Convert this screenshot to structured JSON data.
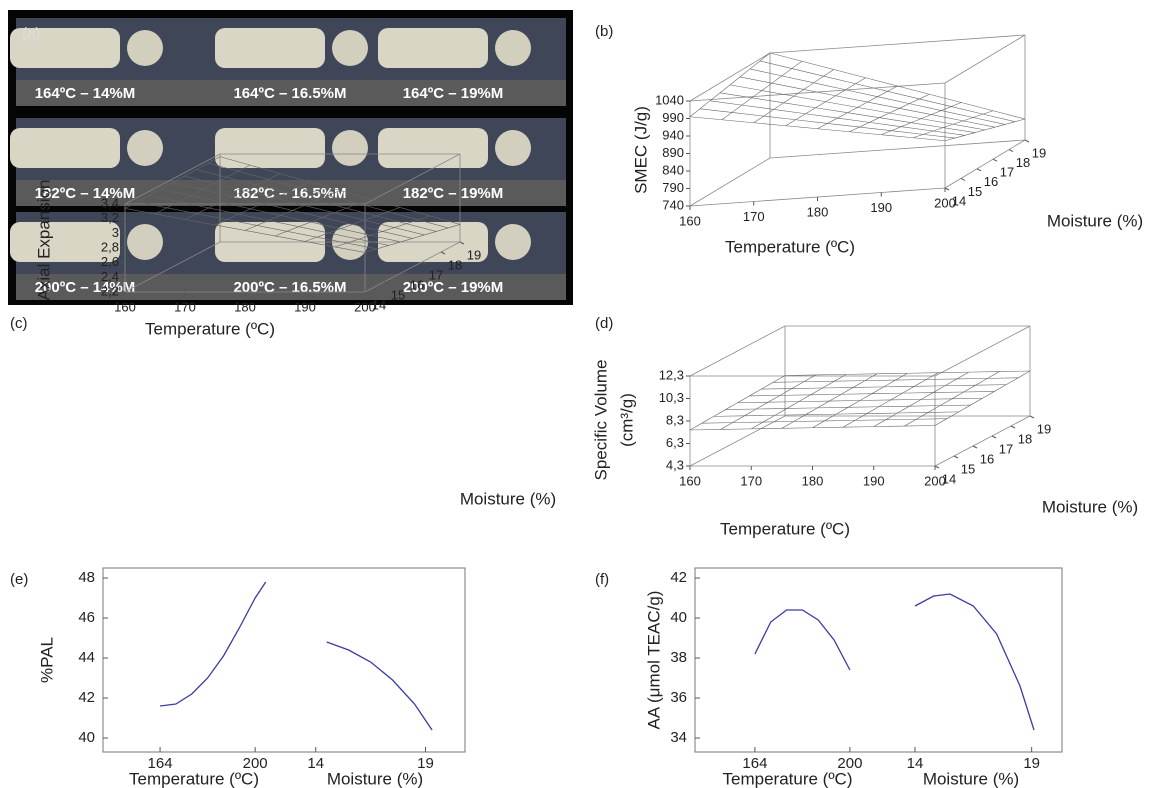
{
  "chart_data": [
    {
      "type": "photo-grid",
      "label": "(a)",
      "captions": [
        [
          "164ºC – 14%M",
          "164ºC – 16.5%M",
          "164ºC – 19%M"
        ],
        [
          "182ºC – 14%M",
          "182ºC – 16.5%M",
          "182ºC – 19%M"
        ],
        [
          "200ºC – 14%M",
          "200ºC – 16.5%M",
          "200ºC – 19%M"
        ]
      ]
    },
    {
      "type": "surface3d",
      "label": "(b)",
      "z_label": [
        "SMEC (J/g)"
      ],
      "x_label": "Temperature (ºC)",
      "y_label": "Moisture (%)",
      "xlim": [
        160,
        200
      ],
      "xticks": [
        160,
        170,
        180,
        190,
        200
      ],
      "ylim": [
        14,
        19
      ],
      "yticks": [
        14,
        15,
        16,
        17,
        18,
        19
      ],
      "zlim": [
        740,
        1040
      ],
      "zticks": [
        740,
        790,
        840,
        890,
        940,
        990,
        1040
      ]
    },
    {
      "type": "surface3d",
      "label": "(c)",
      "z_label": [
        "Axial Expansion"
      ],
      "x_label": "Temperature (ºC)",
      "y_label": "Moisture (%)",
      "xlim": [
        160,
        200
      ],
      "xticks": [
        160,
        170,
        180,
        190,
        200
      ],
      "ylim": [
        14,
        19
      ],
      "yticks": [
        14,
        15,
        16,
        17,
        18,
        19
      ],
      "zlim": [
        2.2,
        3.4
      ],
      "zticks": [
        {
          "value": 2.2,
          "label": "2,2"
        },
        {
          "value": 2.4,
          "label": "2,4"
        },
        {
          "value": 2.6,
          "label": "2,6"
        },
        {
          "value": 2.8,
          "label": "2,8"
        },
        3,
        {
          "value": 3.2,
          "label": "3,2"
        },
        {
          "value": 3.4,
          "label": "3,4"
        }
      ]
    },
    {
      "type": "surface3d",
      "label": "(d)",
      "z_label": [
        "Specific Volume",
        "(cm³/g)"
      ],
      "x_label": "Temperature (ºC)",
      "y_label": "Moisture (%)",
      "xlim": [
        160,
        200
      ],
      "xticks": [
        160,
        170,
        180,
        190,
        200
      ],
      "ylim": [
        14,
        19
      ],
      "yticks": [
        14,
        15,
        16,
        17,
        18,
        19
      ],
      "zlim": [
        4.3,
        12.3
      ],
      "zticks": [
        {
          "value": 4.3,
          "label": "4,3"
        },
        {
          "value": 6.3,
          "label": "6,3"
        },
        {
          "value": 8.3,
          "label": "8,3"
        },
        {
          "value": 10.3,
          "label": "10,3"
        },
        {
          "value": 12.3,
          "label": "12,3"
        }
      ]
    },
    {
      "type": "line",
      "label": "(e)",
      "y_label": "%PAL",
      "color": "#3b3ba8",
      "ylim": [
        40,
        48
      ],
      "yticks": [
        40,
        42,
        44,
        46,
        48
      ],
      "subplots": [
        {
          "x_label": "Temperature (ºC)",
          "xlim": [
            142.4,
            211.3
          ],
          "xticks": [
            164,
            200
          ],
          "x": [
            164,
            170,
            176,
            182,
            188,
            194,
            200,
            204
          ],
          "values": [
            41.6,
            41.7,
            42.2,
            43.0,
            44.1,
            45.5,
            47.0,
            47.8
          ]
        },
        {
          "x_label": "Moisture (%)",
          "xlim": [
            12.6,
            20.8
          ],
          "xticks": [
            14,
            19
          ],
          "x": [
            14.5,
            15.5,
            16.5,
            17.5,
            18.5,
            19.3
          ],
          "values": [
            44.8,
            44.4,
            43.8,
            42.9,
            41.7,
            40.4
          ]
        }
      ]
    },
    {
      "type": "line",
      "label": "(f)",
      "y_label": "AA  (μmol TEAC/g)",
      "color": "#3b3ba8",
      "ylim": [
        34,
        42
      ],
      "yticks": [
        34,
        36,
        38,
        40,
        42
      ],
      "subplots": [
        {
          "x_label": "Temperature (ºC)",
          "xlim": [
            141.3,
            211.4
          ],
          "xticks": [
            164,
            200
          ],
          "x": [
            164,
            170,
            176,
            182,
            188,
            194,
            200
          ],
          "values": [
            38.2,
            39.8,
            40.4,
            40.4,
            39.9,
            38.9,
            37.4
          ]
        },
        {
          "x_label": "Moisture (%)",
          "xlim": [
            12.5,
            20.3
          ],
          "xticks": [
            14,
            19
          ],
          "x": [
            14,
            14.8,
            15.5,
            16.5,
            17.5,
            18.5,
            19.1
          ],
          "values": [
            40.6,
            41.1,
            41.2,
            40.6,
            39.2,
            36.6,
            34.4
          ]
        }
      ]
    }
  ]
}
